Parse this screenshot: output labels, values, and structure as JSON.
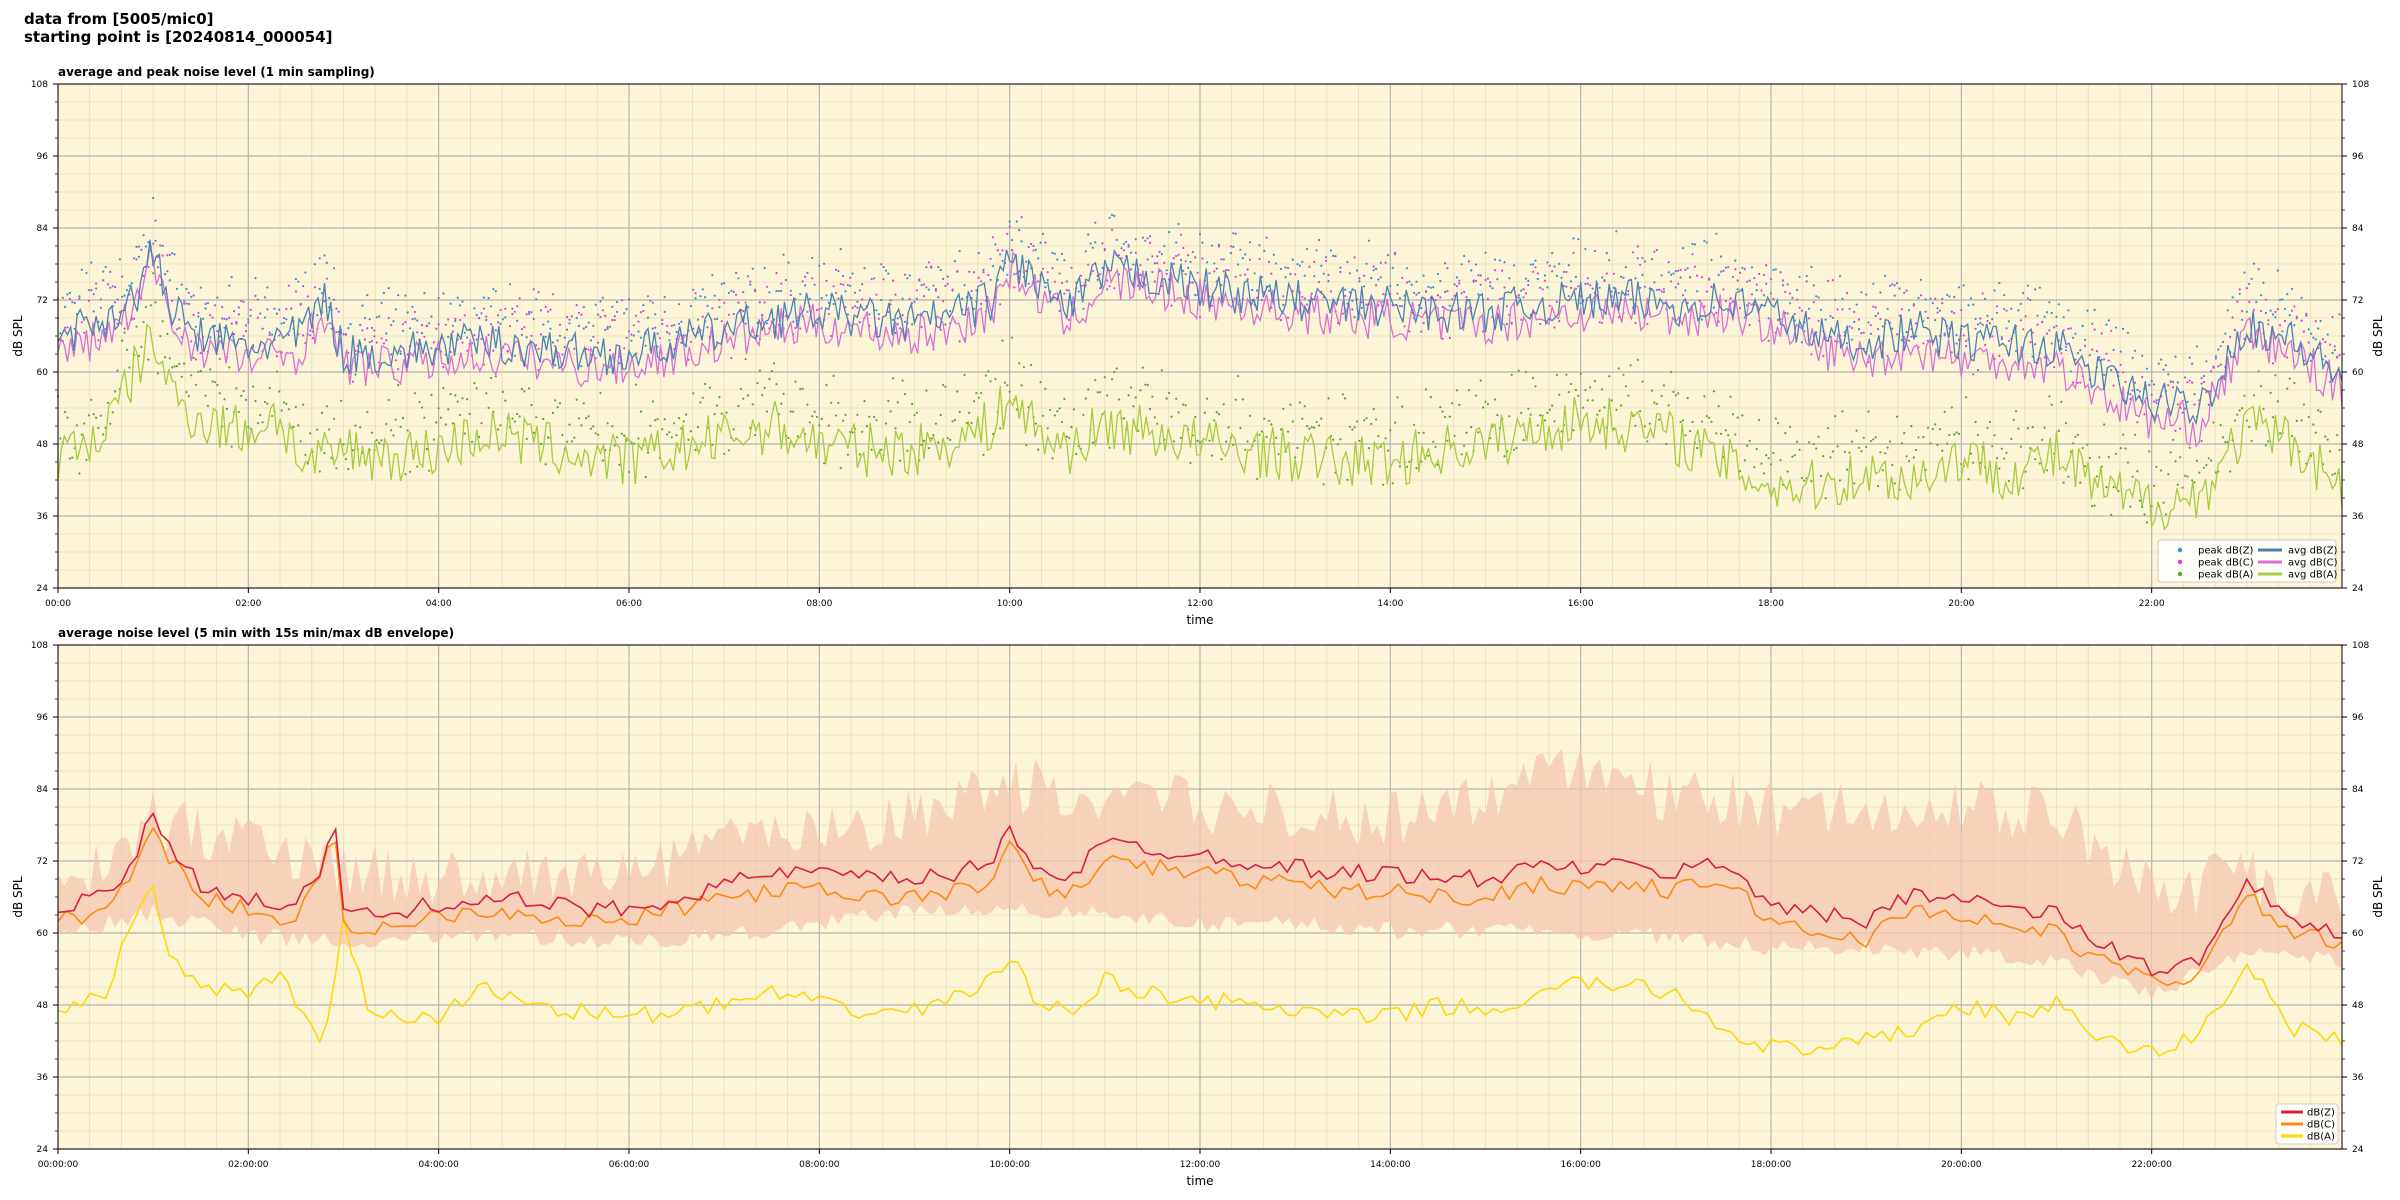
{
  "header": {
    "line1": "data from [5005/mic0]",
    "line2": "starting point is [20240814_000054]"
  },
  "chart_data": [
    {
      "type": "line",
      "title": "average and peak noise level (1 min sampling)",
      "xlabel": "time",
      "ylabel": "dB SPL",
      "ylim": [
        24,
        108
      ],
      "yticks": [
        "108",
        "96",
        "84",
        "72",
        "60",
        "48",
        "36",
        "24"
      ],
      "x_range_hours": [
        0,
        24
      ],
      "xticks": [
        "00:00",
        "02:00",
        "04:00",
        "06:00",
        "08:00",
        "10:00",
        "12:00",
        "14:00",
        "16:00",
        "18:00",
        "20:00",
        "22:00"
      ],
      "grid": true,
      "legend_position": "bottom-right",
      "background": "#fdf5d8",
      "series": [
        {
          "name": "peak dB(Z)",
          "kind": "scatter",
          "color": "#3b8fd9"
        },
        {
          "name": "peak dB(C)",
          "kind": "scatter",
          "color": "#e040e0"
        },
        {
          "name": "peak dB(A)",
          "kind": "scatter",
          "color": "#58a830"
        },
        {
          "name": "avg dB(Z)",
          "kind": "line",
          "color": "#4a82b4",
          "x": [
            0,
            0.5,
            0.8,
            1,
            1.2,
            1.5,
            2,
            2.5,
            2.8,
            3,
            3.5,
            4,
            4.5,
            5,
            5.5,
            6,
            6.5,
            7,
            7.5,
            8,
            8.5,
            9,
            9.5,
            9.8,
            10,
            10.3,
            10.6,
            11,
            11.5,
            12,
            12.5,
            13,
            13.5,
            14,
            14.5,
            15,
            15.5,
            16,
            16.5,
            17,
            17.5,
            18,
            18.5,
            19,
            19.5,
            20,
            20.5,
            21,
            21.5,
            22,
            22.5,
            23,
            23.5,
            24
          ],
          "values": [
            66,
            69,
            72,
            80,
            70,
            66,
            64,
            66,
            72,
            63,
            63,
            64,
            65,
            64,
            63,
            63,
            65,
            67,
            69,
            70,
            69,
            68,
            70,
            72,
            79,
            75,
            70,
            77,
            76,
            74,
            73,
            72,
            71,
            71,
            70,
            70,
            71,
            72,
            72,
            71,
            72,
            70,
            66,
            65,
            67,
            65,
            65,
            64,
            59,
            55,
            54,
            68,
            65,
            59
          ]
        },
        {
          "name": "avg dB(C)",
          "kind": "line",
          "color": "#d870d8",
          "x": [
            0,
            0.5,
            0.8,
            1,
            1.2,
            1.5,
            2,
            2.5,
            2.8,
            3,
            3.5,
            4,
            4.5,
            5,
            5.5,
            6,
            6.5,
            7,
            7.5,
            8,
            8.5,
            9,
            9.5,
            9.8,
            10,
            10.3,
            10.6,
            11,
            11.5,
            12,
            12.5,
            13,
            13.5,
            14,
            14.5,
            15,
            15.5,
            16,
            16.5,
            17,
            17.5,
            18,
            18.5,
            19,
            19.5,
            20,
            20.5,
            21,
            21.5,
            22,
            22.5,
            23,
            23.5,
            24
          ],
          "values": [
            63,
            66,
            70,
            79,
            68,
            64,
            62,
            63,
            70,
            61,
            61,
            62,
            63,
            62,
            61,
            61,
            63,
            65,
            67,
            68,
            67,
            66,
            68,
            70,
            77,
            73,
            68,
            75,
            74,
            72,
            71,
            70,
            69,
            69,
            68,
            68,
            69,
            70,
            70,
            69,
            70,
            68,
            64,
            62,
            64,
            62,
            62,
            61,
            56,
            52,
            51,
            66,
            63,
            57
          ]
        },
        {
          "name": "avg dB(A)",
          "kind": "line",
          "color": "#a6cc3c",
          "x": [
            0,
            0.5,
            0.8,
            1,
            1.2,
            1.5,
            2,
            2.3,
            2.6,
            3,
            3.5,
            4,
            4.5,
            5,
            5.5,
            6,
            6.5,
            7,
            7.5,
            8,
            8.5,
            9,
            9.5,
            9.8,
            10,
            10.3,
            10.6,
            11,
            11.5,
            12,
            12.5,
            13,
            13.5,
            14,
            14.5,
            15,
            15.5,
            16,
            16.5,
            17,
            17.5,
            18,
            18.5,
            19,
            19.5,
            20,
            20.5,
            21,
            21.5,
            22,
            22.5,
            23,
            23.5,
            24
          ],
          "values": [
            46,
            50,
            60,
            66,
            56,
            52,
            50,
            53,
            44,
            47,
            46,
            47,
            50,
            48,
            46,
            45,
            47,
            49,
            51,
            48,
            47,
            47,
            49,
            51,
            56,
            50,
            47,
            51,
            50,
            48,
            47,
            46,
            45,
            45,
            47,
            48,
            50,
            52,
            51,
            49,
            45,
            41,
            41,
            43,
            42,
            46,
            43,
            46,
            40,
            38,
            39,
            51,
            48,
            41
          ]
        }
      ]
    },
    {
      "type": "line",
      "title": "average noise level (5 min with 15s min/max dB envelope)",
      "xlabel": "time",
      "ylabel": "dB SPL",
      "ylim": [
        24,
        108
      ],
      "yticks": [
        "108",
        "96",
        "84",
        "72",
        "60",
        "48",
        "36",
        "24"
      ],
      "x_range_hours": [
        0,
        24
      ],
      "xticks": [
        "00:00:00",
        "02:00:00",
        "04:00:00",
        "06:00:00",
        "08:00:00",
        "10:00:00",
        "12:00:00",
        "14:00:00",
        "16:00:00",
        "18:00:00",
        "20:00:00",
        "22:00:00"
      ],
      "grid": true,
      "legend_position": "bottom-right",
      "background": "#fdf5d8",
      "envelope": {
        "color": "#f3c6b2",
        "x": [
          0,
          1,
          2,
          3,
          4,
          5,
          6,
          7,
          8,
          9,
          10,
          11,
          12,
          13,
          14,
          15,
          16,
          17,
          18,
          19,
          20,
          21,
          22,
          23,
          24
        ],
        "max": [
          72,
          84,
          80,
          75,
          74,
          74,
          74,
          80,
          82,
          84,
          90,
          88,
          86,
          85,
          84,
          88,
          92,
          88,
          86,
          85,
          86,
          84,
          72,
          74,
          70
        ],
        "min": [
          58,
          62,
          58,
          57,
          58,
          58,
          57,
          58,
          60,
          62,
          62,
          62,
          60,
          60,
          59,
          59,
          58,
          58,
          56,
          56,
          55,
          54,
          48,
          56,
          54
        ]
      },
      "series": [
        {
          "name": "dB(Z)",
          "color": "#d81f3c",
          "x": [
            0,
            0.5,
            0.8,
            1,
            1.2,
            1.5,
            2,
            2.5,
            2.8,
            2.9,
            3,
            3.5,
            4,
            4.5,
            5,
            5.5,
            6,
            6.5,
            7,
            7.5,
            8,
            8.5,
            9,
            9.5,
            9.8,
            10,
            10.3,
            10.6,
            11,
            11.5,
            12,
            12.5,
            13,
            13.5,
            14,
            14.5,
            15,
            15.5,
            16,
            16.5,
            17,
            17.5,
            18,
            18.5,
            19,
            19.5,
            20,
            20.5,
            21,
            21.5,
            22,
            22.5,
            23,
            23.5,
            24
          ],
          "values": [
            64,
            66,
            72,
            80,
            74,
            68,
            66,
            64,
            72,
            81,
            63,
            63,
            65,
            66,
            65,
            64,
            64,
            66,
            68,
            70,
            70,
            69,
            69,
            70,
            72,
            77,
            71,
            69,
            75,
            74,
            73,
            72,
            71,
            70,
            70,
            69,
            69,
            71,
            71,
            71,
            70,
            72,
            65,
            63,
            62,
            67,
            66,
            64,
            63,
            58,
            54,
            55,
            68,
            62,
            60
          ]
        },
        {
          "name": "dB(C)",
          "color": "#ff8a10",
          "x": [
            0,
            0.5,
            0.8,
            1,
            1.2,
            1.5,
            2,
            2.5,
            2.8,
            2.9,
            3,
            3.5,
            4,
            4.5,
            5,
            5.5,
            6,
            6.5,
            7,
            7.5,
            8,
            8.5,
            9,
            9.5,
            9.8,
            10,
            10.3,
            10.6,
            11,
            11.5,
            12,
            12.5,
            13,
            13.5,
            14,
            14.5,
            15,
            15.5,
            16,
            16.5,
            17,
            17.5,
            18,
            18.5,
            19,
            19.5,
            20,
            20.5,
            21,
            21.5,
            22,
            22.5,
            23,
            23.5,
            24
          ],
          "values": [
            62,
            64,
            70,
            78,
            72,
            66,
            64,
            62,
            70,
            79,
            61,
            61,
            63,
            64,
            63,
            62,
            62,
            64,
            66,
            67,
            67,
            66,
            66,
            67,
            69,
            74,
            68,
            66,
            72,
            71,
            70,
            69,
            68,
            67,
            67,
            66,
            66,
            68,
            68,
            68,
            67,
            69,
            62,
            60,
            59,
            64,
            63,
            61,
            60,
            55,
            52,
            53,
            66,
            60,
            58
          ]
        },
        {
          "name": "dB(A)",
          "color": "#ffd80a",
          "x": [
            0,
            0.5,
            0.8,
            1,
            1.2,
            1.5,
            2,
            2.3,
            2.6,
            2.8,
            3,
            3.3,
            3.6,
            4,
            4.5,
            5,
            5.5,
            6,
            6.5,
            7,
            7.5,
            8,
            8.5,
            9,
            9.5,
            9.8,
            10,
            10.3,
            10.6,
            11,
            11.5,
            12,
            12.5,
            13,
            13.5,
            14,
            14.5,
            15,
            15.5,
            16,
            16.5,
            17,
            17.5,
            18,
            18.5,
            19,
            19.5,
            20,
            20.5,
            21,
            21.5,
            22,
            22.5,
            23,
            23.5,
            24
          ],
          "values": [
            47,
            50,
            62,
            67,
            55,
            52,
            49,
            53,
            46,
            42,
            62,
            45,
            46,
            46,
            51,
            48,
            47,
            46,
            47,
            48,
            50,
            48,
            47,
            47,
            50,
            52,
            56,
            48,
            47,
            52,
            50,
            49,
            48,
            47,
            46,
            46,
            48,
            47,
            49,
            52,
            51,
            50,
            44,
            41,
            40,
            42,
            44,
            48,
            46,
            48,
            42,
            40,
            43,
            55,
            44,
            42
          ]
        }
      ]
    }
  ]
}
